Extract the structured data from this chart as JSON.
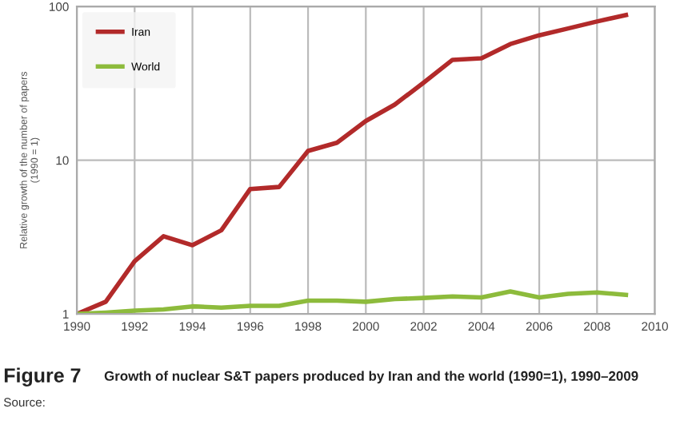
{
  "chart_data": {
    "type": "line",
    "title": "Growth of nuclear S&T papers produced by Iran and the world (1990=1), 1990–2009",
    "ylabel": "Relative growth of the number of papers\n(1990 = 1)",
    "annotations": [
      "Figure 7",
      "Source:"
    ],
    "x": [
      1990,
      1991,
      1992,
      1993,
      1994,
      1995,
      1996,
      1997,
      1998,
      1999,
      2000,
      2001,
      2002,
      2003,
      2004,
      2005,
      2006,
      2007,
      2008,
      2009
    ],
    "series": [
      {
        "name": "Iran",
        "color": "#b22a2a",
        "values": [
          1,
          1.2,
          2.2,
          3.2,
          2.8,
          3.5,
          6.5,
          6.7,
          11.5,
          13,
          18,
          23,
          32,
          45,
          46,
          57,
          65,
          72,
          80,
          88
        ]
      },
      {
        "name": "World",
        "color": "#8dbb3c",
        "values": [
          1,
          1.02,
          1.05,
          1.07,
          1.12,
          1.1,
          1.13,
          1.13,
          1.22,
          1.22,
          1.2,
          1.25,
          1.27,
          1.3,
          1.28,
          1.4,
          1.28,
          1.35,
          1.38,
          1.33
        ]
      }
    ],
    "log": "y",
    "xlim": [
      1990,
      2010
    ],
    "ylim": [
      1,
      100
    ],
    "xticks": [
      1990,
      1992,
      1994,
      1996,
      1998,
      2000,
      2002,
      2004,
      2006,
      2008,
      2010
    ],
    "yticks": [
      1,
      10,
      100
    ],
    "grid": true,
    "legend": "top left",
    "marker": "none",
    "line_style": "solid"
  }
}
